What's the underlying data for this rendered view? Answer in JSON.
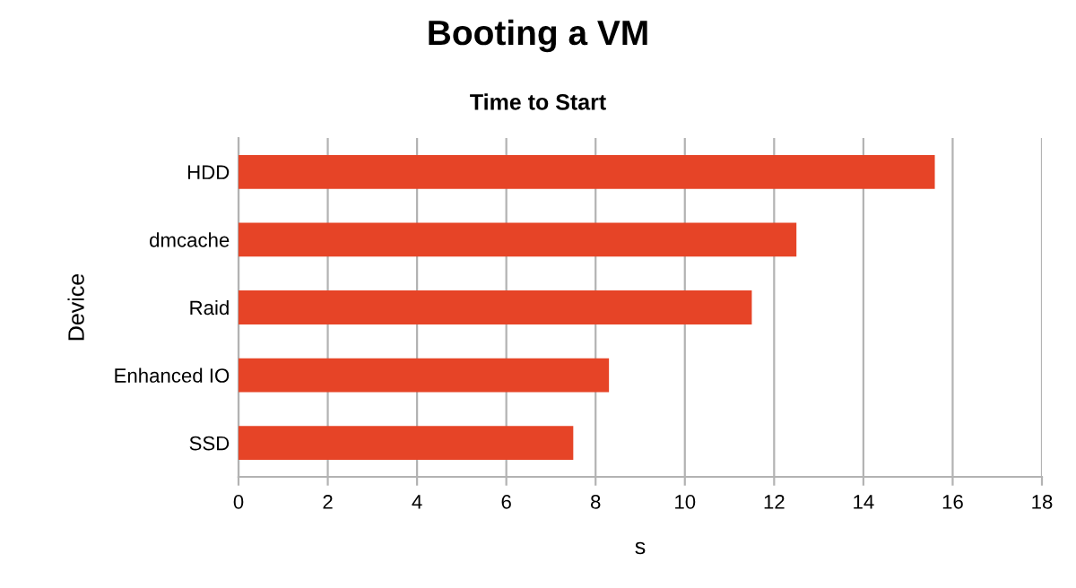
{
  "chart_data": {
    "type": "bar",
    "orientation": "horizontal",
    "title": "Booting a VM",
    "subtitle": "Time to Start",
    "xlabel": "s",
    "ylabel": "Device",
    "categories": [
      "HDD",
      "dmcache",
      "Raid",
      "Enhanced IO",
      "SSD"
    ],
    "values": [
      15.6,
      12.5,
      11.5,
      8.3,
      7.5
    ],
    "color": "#e64427",
    "xlim": [
      0,
      18
    ],
    "xticks": [
      0,
      2,
      4,
      6,
      8,
      10,
      12,
      14,
      16,
      18
    ],
    "grid": "x",
    "legend": false
  }
}
